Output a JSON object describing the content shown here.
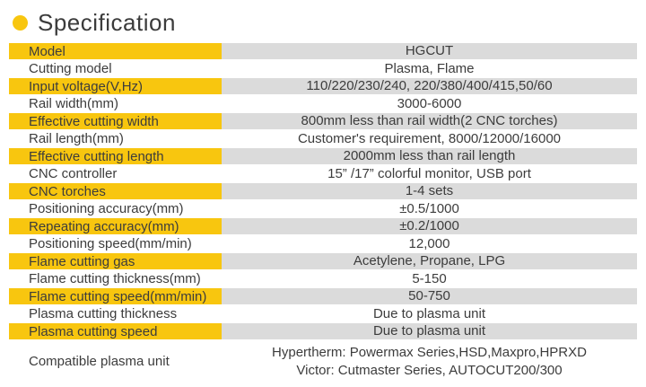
{
  "colors": {
    "accent_yellow": "#F8C60F",
    "value_cell_gray": "#DBDBDB",
    "text": "#3C3C3C"
  },
  "header": {
    "title": "Specification"
  },
  "table": {
    "rows": [
      {
        "label": "Model",
        "value": "HGCUT"
      },
      {
        "label": "Cutting model",
        "value": "Plasma, Flame"
      },
      {
        "label": "Input voltage(V,Hz)",
        "value": "110/220/230/240, 220/380/400/415,50/60"
      },
      {
        "label": "Rail width(mm)",
        "value": "3000-6000"
      },
      {
        "label": "Effective cutting width",
        "value": "800mm less than rail width(2 CNC torches)"
      },
      {
        "label": "Rail length(mm)",
        "value": "Customer's requirement, 8000/12000/16000"
      },
      {
        "label": "Effective cutting length",
        "value": "2000mm less than rail length"
      },
      {
        "label": "CNC controller",
        "value": "15”  /17”  colorful monitor, USB port"
      },
      {
        "label": "CNC torches",
        "value": "1-4 sets"
      },
      {
        "label": "Positioning accuracy(mm)",
        "value": "±0.5/1000"
      },
      {
        "label": "Repeating accuracy(mm)",
        "value": "±0.2/1000"
      },
      {
        "label": "Positioning speed(mm/min)",
        "value": "12,000"
      },
      {
        "label": "Flame cutting gas",
        "value": "Acetylene, Propane, LPG"
      },
      {
        "label": "Flame cutting thickness(mm)",
        "value": "5-150"
      },
      {
        "label": "Flame cutting speed(mm/min)",
        "value": "50-750"
      },
      {
        "label": "Plasma cutting thickness",
        "value": "Due to plasma unit"
      },
      {
        "label": "Plasma cutting speed",
        "value": "Due to plasma unit"
      },
      {
        "label": "Compatible plasma unit",
        "value": "Hypertherm: Powermax Series,HSD,Maxpro,HPRXD\nVictor: Cutmaster Series, AUTOCUT200/300"
      }
    ]
  }
}
